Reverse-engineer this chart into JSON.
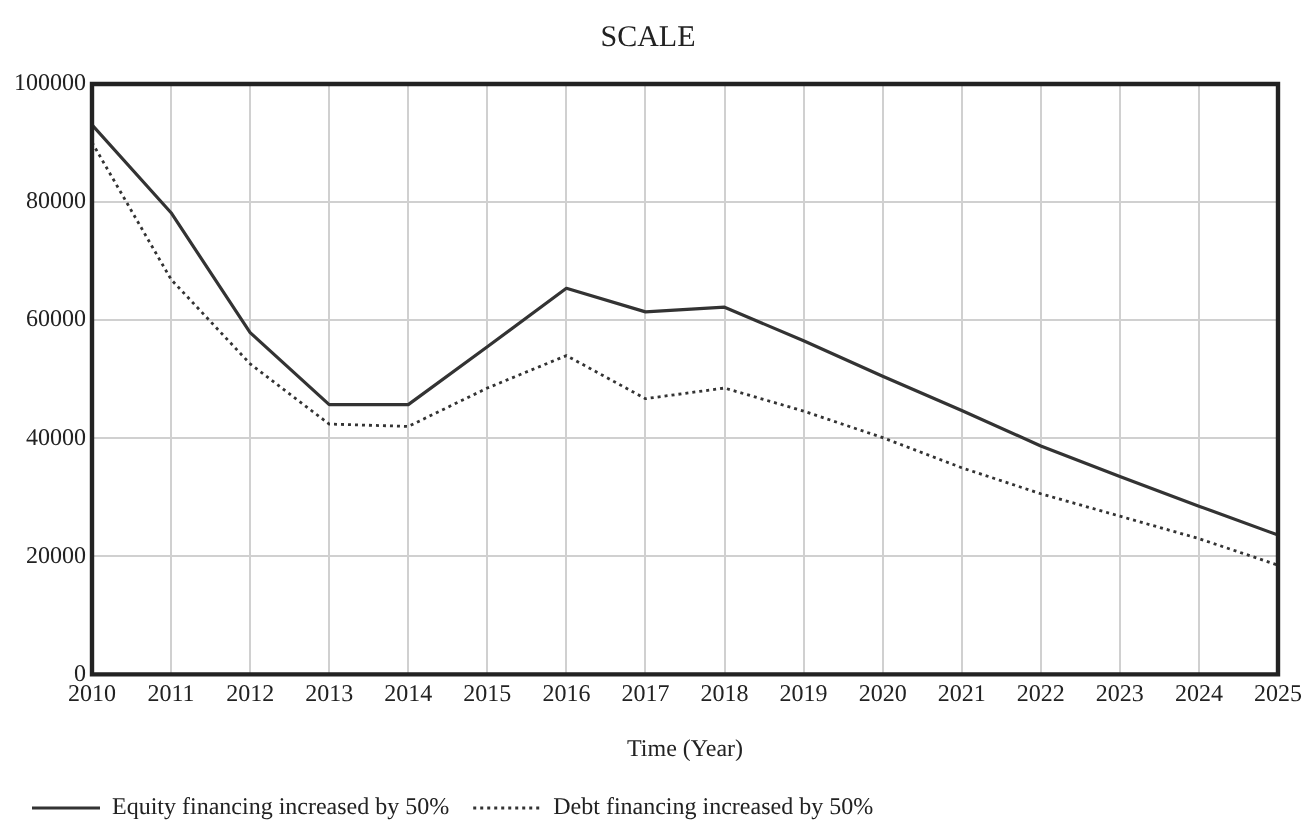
{
  "chart_data": {
    "type": "line",
    "title": "SCALE",
    "xlabel": "Time (Year)",
    "x": [
      2010,
      2011,
      2012,
      2013,
      2014,
      2015,
      2016,
      2017,
      2018,
      2019,
      2020,
      2021,
      2022,
      2023,
      2024,
      2025
    ],
    "series": [
      {
        "name": "Equity financing increased by 50%",
        "color": "#333333",
        "line_style": "solid",
        "values": [
          93100,
          78200,
          57900,
          45700,
          45700,
          55500,
          65400,
          61400,
          62200,
          56500,
          50500,
          44700,
          38700,
          33500,
          28500,
          23600
        ]
      },
      {
        "name": "Debt financing increased by 50%",
        "color": "#333333",
        "line_style": "dotted",
        "values": [
          90100,
          66900,
          52600,
          42400,
          42000,
          48500,
          54000,
          46700,
          48500,
          44600,
          40100,
          35000,
          30600,
          26800,
          23000,
          18500
        ]
      }
    ],
    "xlim": [
      2010,
      2025
    ],
    "xticks": [
      2010,
      2011,
      2012,
      2013,
      2014,
      2015,
      2016,
      2017,
      2018,
      2019,
      2020,
      2021,
      2022,
      2023,
      2024,
      2025
    ],
    "ylim": [
      0,
      100000
    ],
    "yticks": [
      0,
      20000,
      40000,
      60000,
      80000,
      100000
    ],
    "grid": true,
    "legend": "bottom",
    "marker": "none"
  }
}
